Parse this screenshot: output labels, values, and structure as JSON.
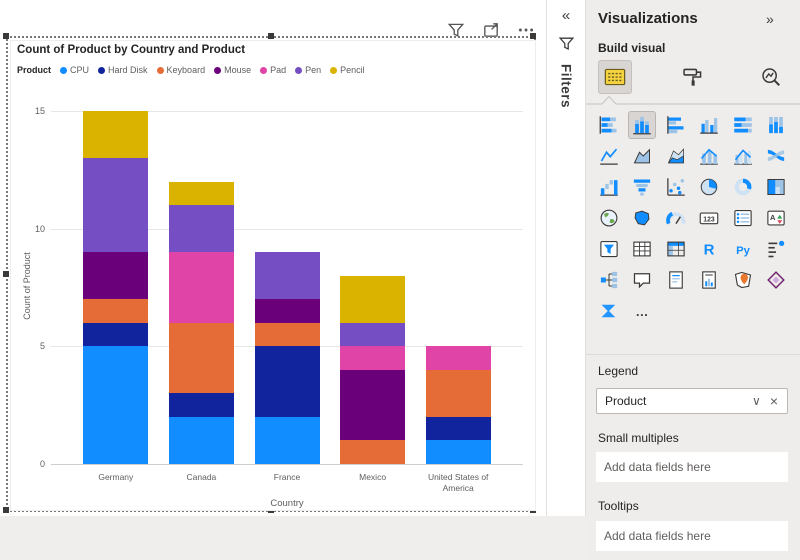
{
  "chart_data": {
    "type": "bar",
    "stacked": true,
    "title": "Count of Product by Country and Product",
    "legend_title": "Product",
    "xlabel": "Country",
    "ylabel": "Count of Product",
    "ylim": [
      0,
      15
    ],
    "yticks": [
      0,
      5,
      10,
      15
    ],
    "grid": true,
    "legend_position": "top",
    "categories": [
      "Germany",
      "Canada",
      "France",
      "Mexico",
      "United States of America"
    ],
    "series": [
      {
        "name": "CPU",
        "color": "#118DFF",
        "values": [
          5,
          2,
          2,
          0,
          1
        ]
      },
      {
        "name": "Hard Disk",
        "color": "#12239E",
        "values": [
          1,
          1,
          3,
          0,
          1
        ]
      },
      {
        "name": "Keyboard",
        "color": "#E66C37",
        "values": [
          1,
          3,
          1,
          1,
          2
        ]
      },
      {
        "name": "Mouse",
        "color": "#6B007B",
        "values": [
          2,
          0,
          1,
          3,
          0
        ]
      },
      {
        "name": "Pad",
        "color": "#E044A7",
        "values": [
          0,
          3,
          0,
          1,
          1
        ]
      },
      {
        "name": "Pen",
        "color": "#744EC2",
        "values": [
          4,
          2,
          2,
          1,
          0
        ]
      },
      {
        "name": "Pencil",
        "color": "#D9B300",
        "values": [
          2,
          1,
          0,
          2,
          0
        ]
      }
    ],
    "totals": [
      15,
      12,
      9,
      8,
      5
    ]
  },
  "filters_tab": {
    "collapse_glyph": "«",
    "label": "Filters"
  },
  "viz_pane": {
    "title": "Visualizations",
    "collapse_glyph": "»",
    "build_visual_label": "Build visual",
    "tabs": [
      {
        "name": "build",
        "selected": true
      },
      {
        "name": "format",
        "selected": false
      },
      {
        "name": "analytics",
        "selected": false
      }
    ],
    "more_glyph": "…",
    "gallery": [
      {
        "name": "stacked-bar-chart"
      },
      {
        "name": "stacked-column-chart",
        "selected": true
      },
      {
        "name": "clustered-bar-chart"
      },
      {
        "name": "clustered-column-chart"
      },
      {
        "name": "pct-stacked-bar-chart"
      },
      {
        "name": "pct-stacked-column-chart"
      },
      {
        "name": "line-chart"
      },
      {
        "name": "area-chart"
      },
      {
        "name": "stacked-area-chart"
      },
      {
        "name": "line-and-stacked-column-chart"
      },
      {
        "name": "line-and-clustered-column-chart"
      },
      {
        "name": "ribbon-chart"
      },
      {
        "name": "waterfall-chart"
      },
      {
        "name": "funnel-chart"
      },
      {
        "name": "scatter-chart"
      },
      {
        "name": "pie-chart"
      },
      {
        "name": "donut-chart"
      },
      {
        "name": "treemap"
      },
      {
        "name": "map"
      },
      {
        "name": "filled-map"
      },
      {
        "name": "gauge"
      },
      {
        "name": "card"
      },
      {
        "name": "multi-row-card"
      },
      {
        "name": "kpi"
      },
      {
        "name": "slicer"
      },
      {
        "name": "table"
      },
      {
        "name": "matrix"
      },
      {
        "name": "r-script-visual"
      },
      {
        "name": "python-visual"
      },
      {
        "name": "key-influencers"
      },
      {
        "name": "decomposition-tree"
      },
      {
        "name": "q-and-a"
      },
      {
        "name": "smart-narrative"
      },
      {
        "name": "paginated-report"
      },
      {
        "name": "arcgis-map"
      },
      {
        "name": "power-apps-visual"
      },
      {
        "name": "power-automate-visual"
      },
      {
        "name": "get-more-visuals"
      }
    ],
    "sections": {
      "legend": {
        "label": "Legend",
        "field": "Product",
        "chevron_glyph": "∨",
        "remove_glyph": "×"
      },
      "small_multiples": {
        "label": "Small multiples",
        "placeholder": "Add data fields here"
      },
      "tooltips": {
        "label": "Tooltips",
        "placeholder": "Add data fields here"
      }
    }
  }
}
